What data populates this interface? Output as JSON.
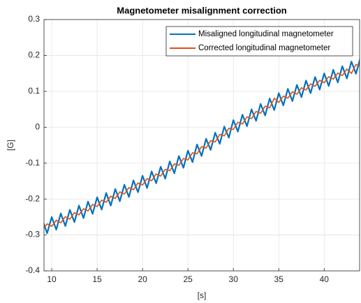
{
  "chart_data": {
    "type": "line",
    "title": "Magnetometer misalignment correction",
    "x_label": "[s]",
    "y_label": "[G]",
    "x": [
      9,
      9.5,
      10,
      10.5,
      11,
      11.5,
      12,
      12.5,
      13,
      13.5,
      14,
      14.5,
      15,
      15.5,
      16,
      16.5,
      17,
      17.5,
      18,
      18.5,
      19,
      19.5,
      20,
      20.5,
      21,
      21.5,
      22,
      22.5,
      23,
      23.5,
      24,
      24.5,
      25,
      25.5,
      26,
      26.5,
      27,
      27.5,
      28,
      28.5,
      29,
      29.5,
      30,
      30.5,
      31,
      31.5,
      32,
      32.5,
      33,
      33.5,
      34,
      34.5,
      35,
      35.5,
      36,
      36.5,
      37,
      37.5,
      38,
      38.5,
      39,
      39.5,
      40,
      40.5,
      41,
      41.5,
      42,
      42.5,
      43,
      43.5,
      44
    ],
    "series": [
      {
        "name": "Misaligned longitudinal magnetometer",
        "color": "#0072bd",
        "values": [
          -0.26,
          -0.295,
          -0.25,
          -0.285,
          -0.24,
          -0.275,
          -0.23,
          -0.264,
          -0.218,
          -0.253,
          -0.207,
          -0.241,
          -0.195,
          -0.229,
          -0.183,
          -0.218,
          -0.172,
          -0.206,
          -0.16,
          -0.194,
          -0.148,
          -0.181,
          -0.135,
          -0.169,
          -0.123,
          -0.156,
          -0.11,
          -0.143,
          -0.095,
          -0.128,
          -0.08,
          -0.113,
          -0.065,
          -0.097,
          -0.048,
          -0.08,
          -0.032,
          -0.063,
          -0.015,
          -0.046,
          0.002,
          -0.029,
          0.02,
          -0.012,
          0.035,
          0.003,
          0.05,
          0.018,
          0.065,
          0.033,
          0.08,
          0.048,
          0.095,
          0.061,
          0.107,
          0.073,
          0.118,
          0.084,
          0.13,
          0.095,
          0.14,
          0.105,
          0.15,
          0.115,
          0.16,
          0.125,
          0.17,
          0.136,
          0.183,
          0.149,
          0.195
        ]
      },
      {
        "name": "Corrected longitudinal magnetometer",
        "color": "#d95319",
        "values": [
          -0.286,
          -0.269,
          -0.276,
          -0.259,
          -0.266,
          -0.249,
          -0.256,
          -0.238,
          -0.244,
          -0.227,
          -0.233,
          -0.215,
          -0.221,
          -0.203,
          -0.209,
          -0.192,
          -0.198,
          -0.18,
          -0.186,
          -0.168,
          -0.174,
          -0.155,
          -0.161,
          -0.143,
          -0.149,
          -0.13,
          -0.136,
          -0.117,
          -0.121,
          -0.102,
          -0.106,
          -0.087,
          -0.091,
          -0.071,
          -0.074,
          -0.054,
          -0.058,
          -0.037,
          -0.041,
          -0.02,
          -0.024,
          -0.003,
          -0.006,
          0.014,
          0.009,
          0.029,
          0.024,
          0.044,
          0.039,
          0.059,
          0.054,
          0.081,
          0.069,
          0.087,
          0.081,
          0.099,
          0.092,
          0.11,
          0.104,
          0.121,
          0.114,
          0.131,
          0.124,
          0.141,
          0.134,
          0.151,
          0.144,
          0.162,
          0.15,
          0.175,
          0.169
        ]
      }
    ],
    "xlim": [
      9.15,
      43.9
    ],
    "ylim": [
      -0.4,
      0.3
    ],
    "xticks": [
      10,
      15,
      20,
      25,
      30,
      35,
      40
    ],
    "yticks": [
      -0.4,
      -0.3,
      -0.2,
      -0.1,
      0,
      0.1,
      0.2,
      0.3
    ],
    "grid": true,
    "legend": "northeast"
  }
}
